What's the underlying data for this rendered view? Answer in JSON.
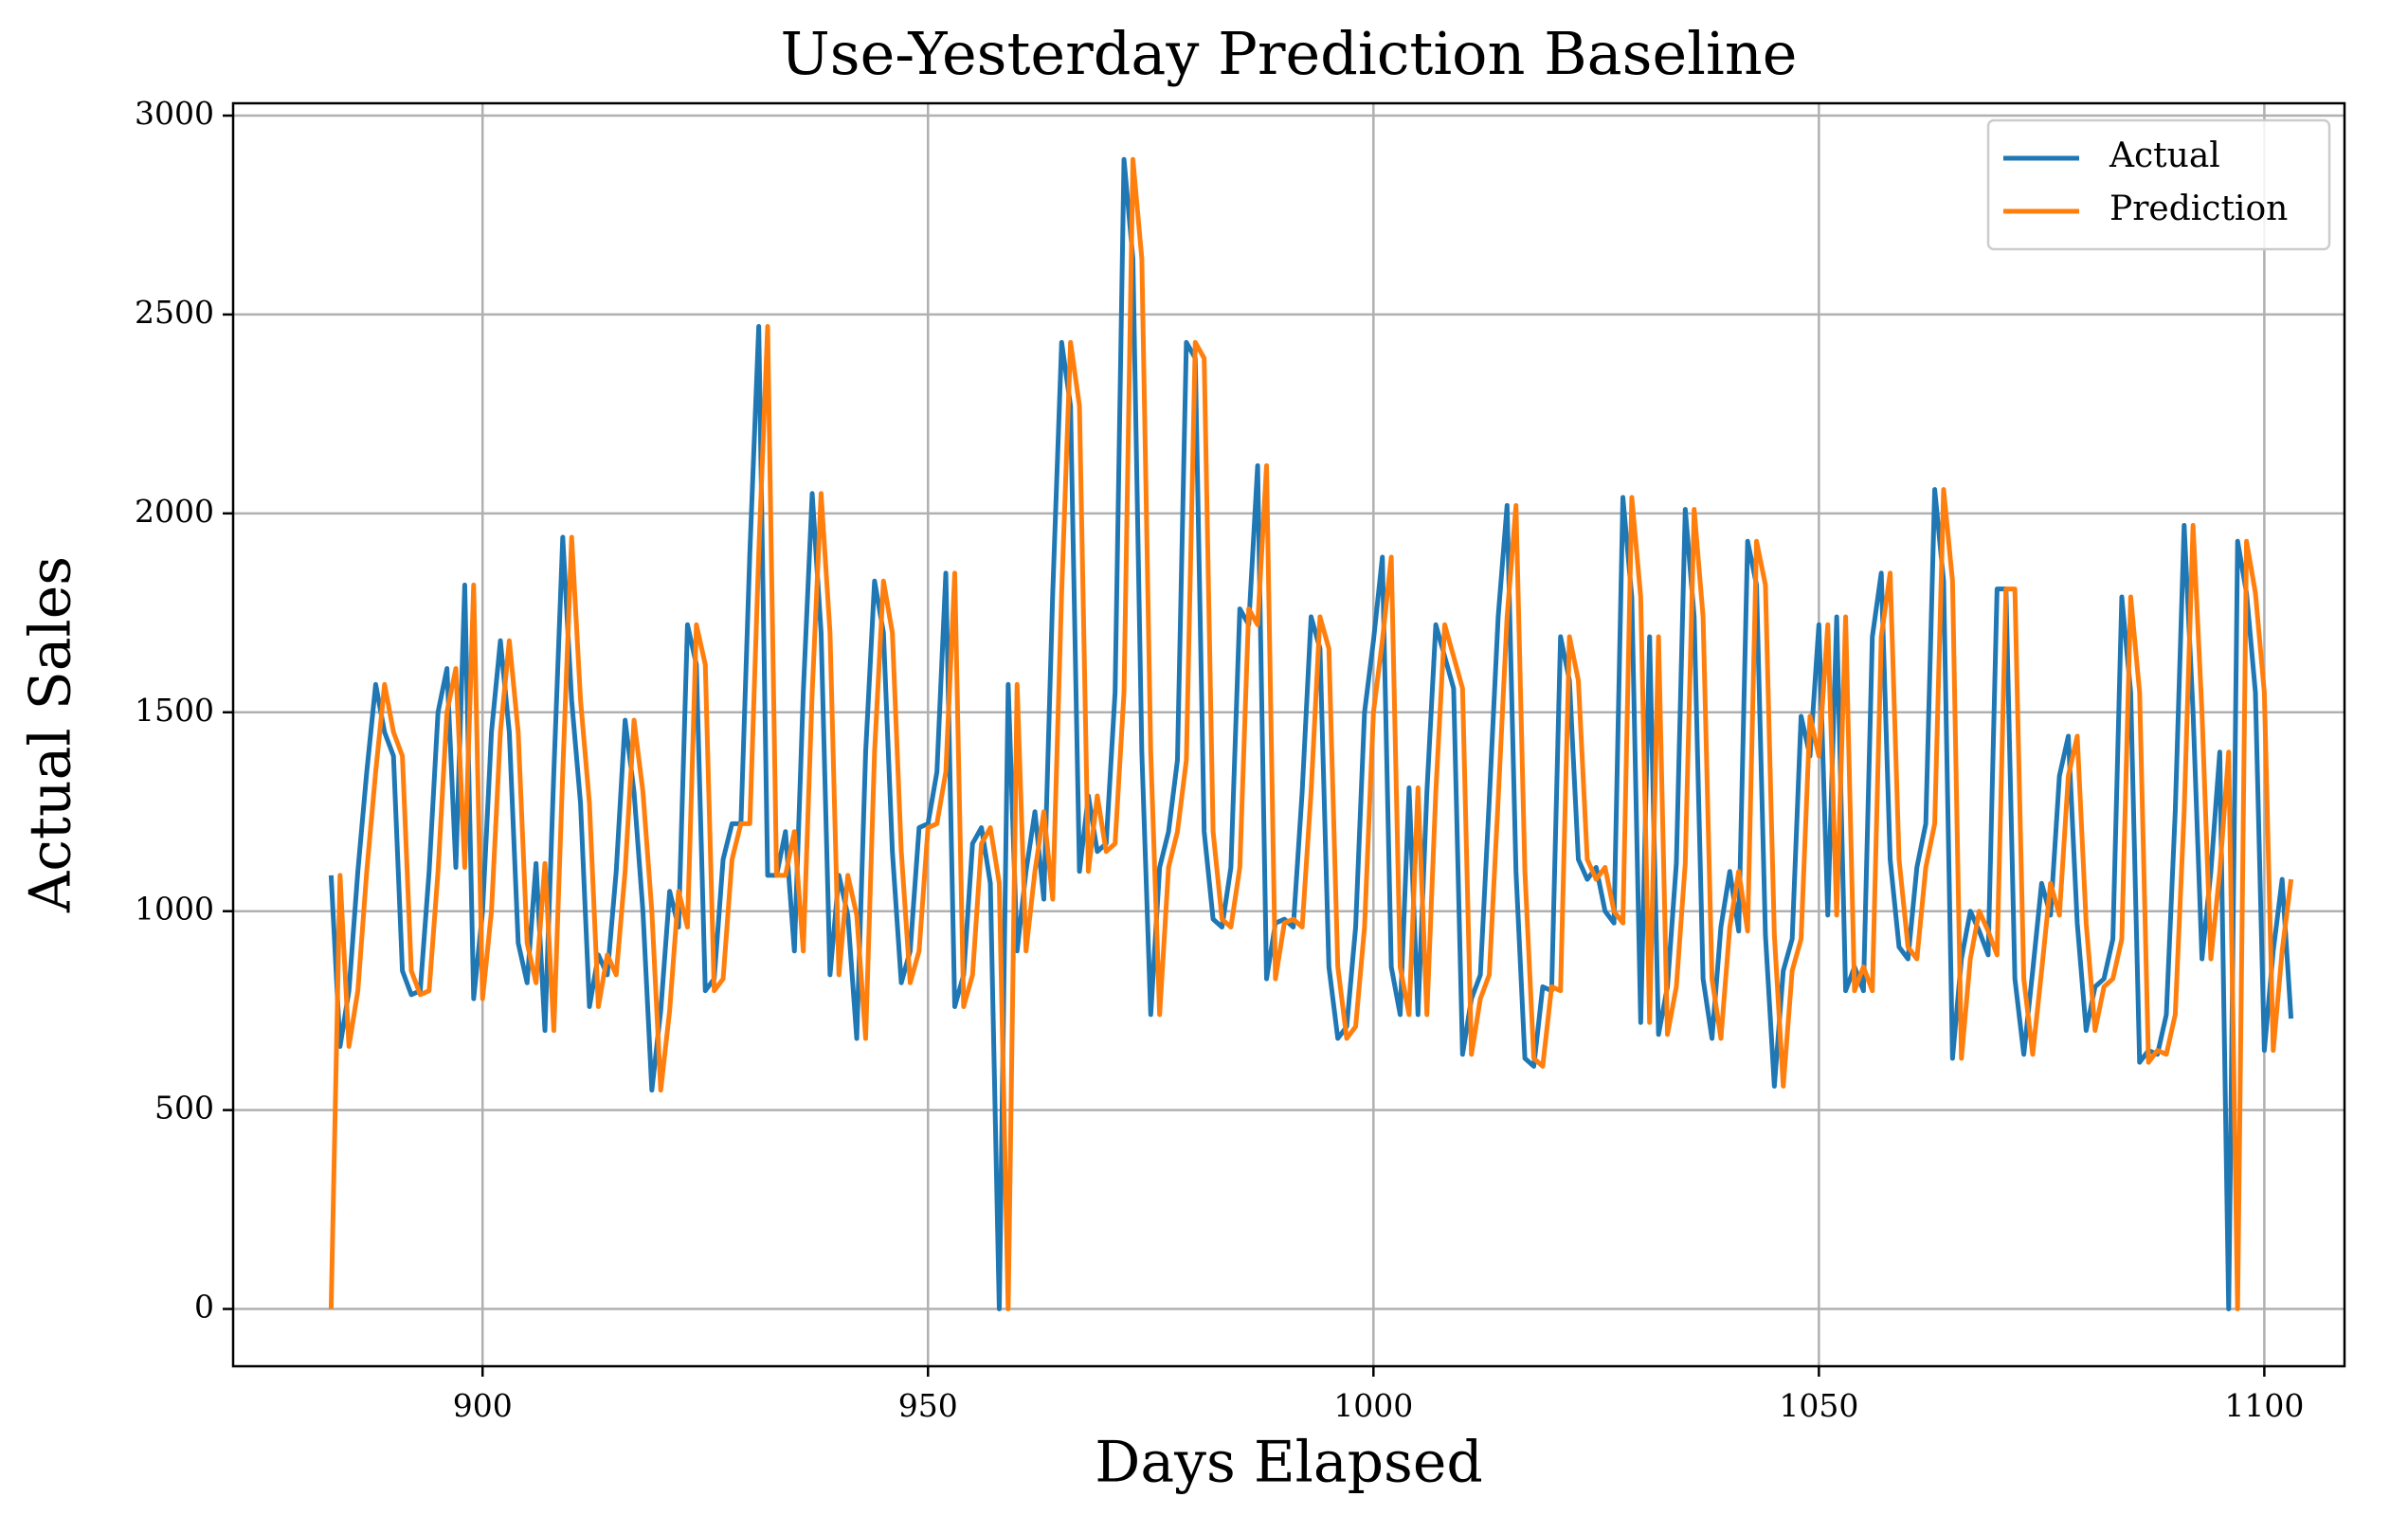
{
  "chart_data": {
    "type": "line",
    "title": "Use-Yesterday Prediction Baseline",
    "x_label": "Days Elapsed",
    "y_label": "Actual Sales",
    "x": [
      883,
      884,
      885,
      886,
      887,
      888,
      889,
      890,
      891,
      892,
      893,
      894,
      895,
      896,
      897,
      898,
      899,
      900,
      901,
      902,
      903,
      904,
      905,
      906,
      907,
      908,
      909,
      910,
      911,
      912,
      913,
      914,
      915,
      916,
      917,
      918,
      919,
      920,
      921,
      922,
      923,
      924,
      925,
      926,
      927,
      928,
      929,
      930,
      931,
      932,
      933,
      934,
      935,
      936,
      937,
      938,
      939,
      940,
      941,
      942,
      943,
      944,
      945,
      946,
      947,
      948,
      949,
      950,
      951,
      952,
      953,
      954,
      955,
      956,
      957,
      958,
      959,
      960,
      961,
      962,
      963,
      964,
      965,
      966,
      967,
      968,
      969,
      970,
      971,
      972,
      973,
      974,
      975,
      976,
      977,
      978,
      979,
      980,
      981,
      982,
      983,
      984,
      985,
      986,
      987,
      988,
      989,
      990,
      991,
      992,
      993,
      994,
      995,
      996,
      997,
      998,
      999,
      1000,
      1001,
      1002,
      1003,
      1004,
      1005,
      1006,
      1007,
      1008,
      1009,
      1010,
      1011,
      1012,
      1013,
      1014,
      1015,
      1016,
      1017,
      1018,
      1019,
      1020,
      1021,
      1022,
      1023,
      1024,
      1025,
      1026,
      1027,
      1028,
      1029,
      1030,
      1031,
      1032,
      1033,
      1034,
      1035,
      1036,
      1037,
      1038,
      1039,
      1040,
      1041,
      1042,
      1043,
      1044,
      1045,
      1046,
      1047,
      1048,
      1049,
      1050,
      1051,
      1052,
      1053,
      1054,
      1055,
      1056,
      1057,
      1058,
      1059,
      1060,
      1061,
      1062,
      1063,
      1064,
      1065,
      1066,
      1067,
      1068,
      1069,
      1070,
      1071,
      1072,
      1073,
      1074,
      1075,
      1076,
      1077,
      1078,
      1079,
      1080,
      1081,
      1082,
      1083,
      1084,
      1085,
      1086,
      1087,
      1088,
      1089,
      1090,
      1091,
      1092,
      1093,
      1094,
      1095,
      1096,
      1097,
      1098,
      1099,
      1100,
      1101,
      1102,
      1103
    ],
    "series": [
      {
        "name": "Actual",
        "color": "#1f77b4",
        "values": [
          1090,
          660,
          800,
          1100,
          1350,
          1570,
          1450,
          1390,
          850,
          790,
          800,
          1100,
          1500,
          1610,
          1110,
          1820,
          780,
          1000,
          1450,
          1680,
          1450,
          920,
          820,
          1120,
          700,
          1350,
          1940,
          1530,
          1270,
          760,
          890,
          840,
          1100,
          1480,
          1300,
          1000,
          550,
          750,
          1050,
          960,
          1720,
          1620,
          800,
          830,
          1130,
          1220,
          1220,
          1900,
          2470,
          1090,
          1090,
          1200,
          900,
          1550,
          2050,
          1700,
          840,
          1090,
          990,
          680,
          1400,
          1830,
          1700,
          1150,
          820,
          900,
          1210,
          1220,
          1350,
          1850,
          760,
          840,
          1170,
          1210,
          1070,
          0,
          1570,
          900,
          1100,
          1250,
          1030,
          1800,
          2430,
          2270,
          1100,
          1290,
          1150,
          1170,
          1550,
          2890,
          2640,
          1400,
          740,
          1110,
          1200,
          1380,
          2430,
          2390,
          1200,
          980,
          960,
          1110,
          1760,
          1720,
          2120,
          830,
          970,
          980,
          960,
          1300,
          1740,
          1660,
          860,
          680,
          710,
          960,
          1500,
          1680,
          1890,
          860,
          740,
          1310,
          740,
          1300,
          1720,
          1640,
          1560,
          640,
          780,
          840,
          1280,
          1740,
          2020,
          1100,
          630,
          610,
          810,
          800,
          1690,
          1580,
          1130,
          1080,
          1110,
          1000,
          970,
          2040,
          1790,
          720,
          1690,
          690,
          810,
          1120,
          2010,
          1740,
          830,
          680,
          960,
          1100,
          950,
          1930,
          1820,
          940,
          560,
          850,
          930,
          1490,
          1390,
          1720,
          990,
          1740,
          800,
          860,
          800,
          1690,
          1850,
          1130,
          910,
          880,
          1110,
          1220,
          2060,
          1830,
          630,
          880,
          1000,
          950,
          890,
          1810,
          1810,
          830,
          640,
          850,
          1070,
          990,
          1340,
          1440,
          970,
          700,
          810,
          830,
          930,
          1790,
          1550,
          620,
          650,
          640,
          740,
          1250,
          1970,
          1500,
          880,
          1100,
          1400,
          0,
          1930,
          1800,
          1550,
          650,
          900,
          1080,
          730
        ]
      },
      {
        "name": "Prediction",
        "color": "#ff7f0e",
        "values": [
          0,
          1090,
          660,
          800,
          1100,
          1350,
          1570,
          1450,
          1390,
          850,
          790,
          800,
          1100,
          1500,
          1610,
          1110,
          1820,
          780,
          1000,
          1450,
          1680,
          1450,
          920,
          820,
          1120,
          700,
          1350,
          1940,
          1530,
          1270,
          760,
          890,
          840,
          1100,
          1480,
          1300,
          1000,
          550,
          750,
          1050,
          960,
          1720,
          1620,
          800,
          830,
          1130,
          1220,
          1220,
          1900,
          2470,
          1090,
          1090,
          1200,
          900,
          1550,
          2050,
          1700,
          840,
          1090,
          990,
          680,
          1400,
          1830,
          1700,
          1150,
          820,
          900,
          1210,
          1220,
          1350,
          1850,
          760,
          840,
          1170,
          1210,
          1070,
          0,
          1570,
          900,
          1100,
          1250,
          1030,
          1800,
          2430,
          2270,
          1100,
          1290,
          1150,
          1170,
          1550,
          2890,
          2640,
          1400,
          740,
          1110,
          1200,
          1380,
          2430,
          2390,
          1200,
          980,
          960,
          1110,
          1760,
          1720,
          2120,
          830,
          970,
          980,
          960,
          1300,
          1740,
          1660,
          860,
          680,
          710,
          960,
          1500,
          1680,
          1890,
          860,
          740,
          1310,
          740,
          1300,
          1720,
          1640,
          1560,
          640,
          780,
          840,
          1280,
          1740,
          2020,
          1100,
          630,
          610,
          810,
          800,
          1690,
          1580,
          1130,
          1080,
          1110,
          1000,
          970,
          2040,
          1790,
          720,
          1690,
          690,
          810,
          1120,
          2010,
          1740,
          830,
          680,
          960,
          1100,
          950,
          1930,
          1820,
          940,
          560,
          850,
          930,
          1490,
          1390,
          1720,
          990,
          1740,
          800,
          860,
          800,
          1690,
          1850,
          1130,
          910,
          880,
          1110,
          1220,
          2060,
          1830,
          630,
          880,
          1000,
          950,
          890,
          1810,
          1810,
          830,
          640,
          850,
          1070,
          990,
          1340,
          1440,
          970,
          700,
          810,
          830,
          930,
          1790,
          1550,
          620,
          650,
          640,
          740,
          1250,
          1970,
          1500,
          880,
          1100,
          1400,
          0,
          1930,
          1800,
          1550,
          650,
          900,
          1080
        ]
      }
    ],
    "xlim": [
      872,
      1109
    ],
    "xticks": [
      900,
      950,
      1000,
      1050,
      1100
    ],
    "ylim": [
      -144,
      3031
    ],
    "yticks": [
      0,
      500,
      1000,
      1500,
      2000,
      2500,
      3000
    ],
    "grid": true,
    "legend": "upper right"
  }
}
